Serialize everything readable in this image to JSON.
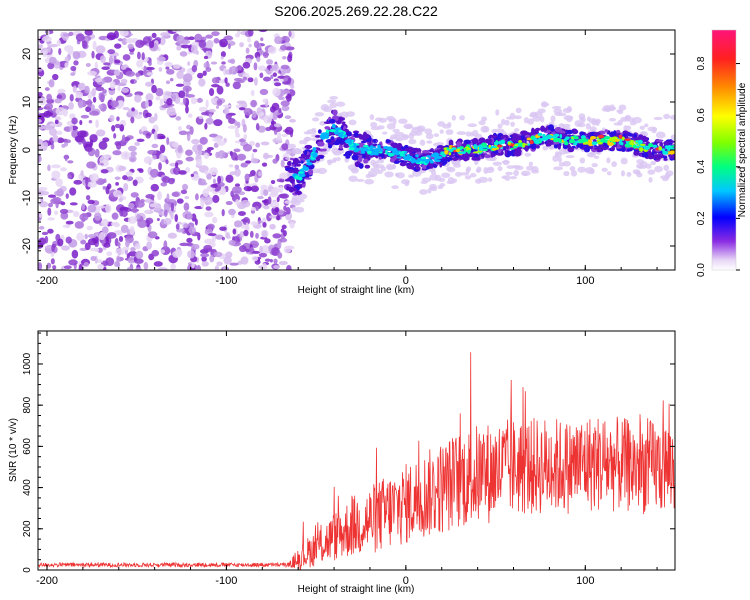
{
  "title": "S206.2025.269.22.28.C22",
  "chart_data": [
    {
      "type": "heatmap",
      "xlabel": "Height of straight line (km)",
      "ylabel": "Frequency (Hz)",
      "xlim": [
        -205,
        150
      ],
      "ylim": [
        -25,
        25
      ],
      "xticks": [
        -200,
        -100,
        0,
        100
      ],
      "xtick_labels": [
        "-200",
        "-100",
        "0",
        "100"
      ],
      "yticks": [
        -20,
        -10,
        0,
        10,
        20
      ],
      "ytick_labels": [
        "-20",
        "-10",
        "0",
        "10",
        "20"
      ],
      "ridge_track": {
        "x": [
          -65,
          -60,
          -55,
          -50,
          -45,
          -40,
          -35,
          -30,
          -25,
          -20,
          -15,
          -10,
          -5,
          0,
          5,
          10,
          15,
          20,
          25,
          30,
          40,
          50,
          60,
          70,
          80,
          90,
          100,
          110,
          120,
          130,
          140,
          150
        ],
        "y": [
          -5,
          -6,
          -3,
          0,
          3,
          5,
          3,
          1,
          0,
          0,
          0,
          0,
          -1,
          -1,
          -2,
          -2,
          -2,
          -1,
          0,
          0,
          0,
          1,
          1,
          2,
          3,
          2,
          2,
          2,
          2,
          1,
          0,
          0
        ]
      },
      "noise_region_x": [
        -205,
        -63
      ],
      "colorbar": {
        "label": "Normalized spectral amplitude",
        "range": [
          0,
          0.93
        ],
        "ticks": [
          0.0,
          0.2,
          0.4,
          0.6,
          0.8
        ],
        "tick_labels": [
          "0.0",
          "0.2",
          "0.4",
          "0.6",
          "0.8"
        ]
      }
    },
    {
      "type": "line",
      "xlabel": "Height of straight line (km)",
      "ylabel": "SNR (10 * v/v)",
      "xlim": [
        -205,
        150
      ],
      "ylim": [
        0,
        1160
      ],
      "xticks": [
        -200,
        -100,
        0,
        100
      ],
      "xtick_labels": [
        "-200",
        "-100",
        "0",
        "100"
      ],
      "yticks": [
        0,
        200,
        400,
        600,
        800,
        1000
      ],
      "ytick_labels": [
        "0",
        "200",
        "400",
        "600",
        "800",
        "1000"
      ],
      "line_color": "#ee3333",
      "trend": {
        "x": [
          -205,
          -65,
          -60,
          -50,
          -40,
          -30,
          -20,
          -10,
          0,
          10,
          20,
          30,
          40,
          50,
          60,
          70,
          80,
          90,
          100,
          110,
          120,
          130,
          140,
          150
        ],
        "mean": [
          25,
          25,
          55,
          110,
          160,
          210,
          240,
          280,
          320,
          360,
          400,
          440,
          460,
          480,
          500,
          500,
          510,
          500,
          520,
          520,
          510,
          500,
          500,
          500
        ],
        "spread": [
          10,
          10,
          60,
          90,
          120,
          150,
          170,
          190,
          200,
          210,
          230,
          240,
          250,
          250,
          240,
          240,
          240,
          230,
          240,
          240,
          230,
          230,
          230,
          230
        ]
      }
    }
  ]
}
